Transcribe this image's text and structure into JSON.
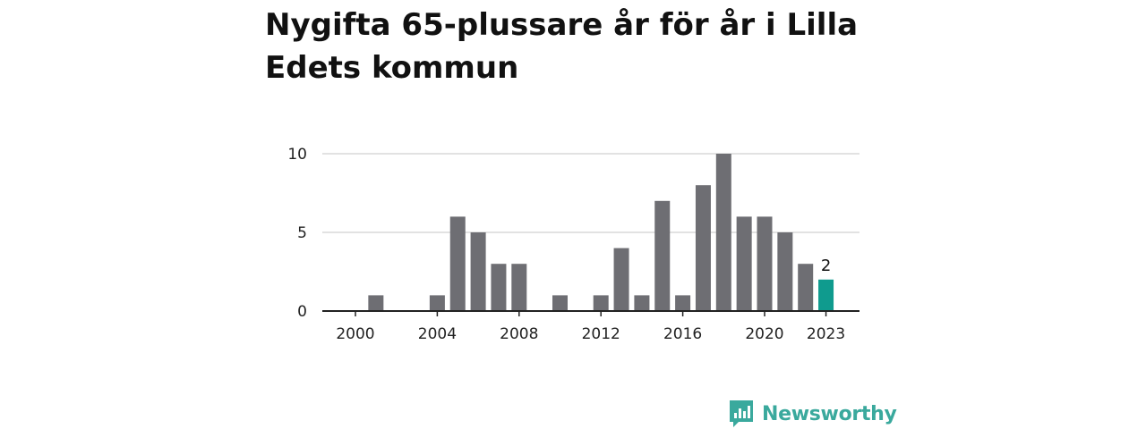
{
  "title": "Nygifta 65-plussare år för år i Lilla Edets kommun",
  "brand": {
    "name": "Newsworthy",
    "icon": "newsworthy-logo-icon",
    "color": "#3aa99d"
  },
  "chart_data": {
    "type": "bar",
    "title": "Nygifta 65-plussare år för år i Lilla Edets kommun",
    "xlabel": "",
    "ylabel": "",
    "x": [
      2000,
      2001,
      2002,
      2003,
      2004,
      2005,
      2006,
      2007,
      2008,
      2009,
      2010,
      2011,
      2012,
      2013,
      2014,
      2015,
      2016,
      2017,
      2018,
      2019,
      2020,
      2021,
      2022,
      2023
    ],
    "values": [
      0,
      1,
      0,
      0,
      1,
      6,
      5,
      3,
      3,
      0,
      1,
      0,
      1,
      4,
      1,
      7,
      1,
      8,
      10,
      6,
      6,
      5,
      3,
      2
    ],
    "ylim": [
      0,
      10
    ],
    "yticks": [
      "0",
      "5",
      "10"
    ],
    "xticks": [
      "2000",
      "2004",
      "2008",
      "2012",
      "2016",
      "2020",
      "2023"
    ],
    "highlight": {
      "x": 2023,
      "label": "2",
      "color": "#0f9b8e"
    },
    "bar_color": "#6e6e73",
    "grid": true
  }
}
